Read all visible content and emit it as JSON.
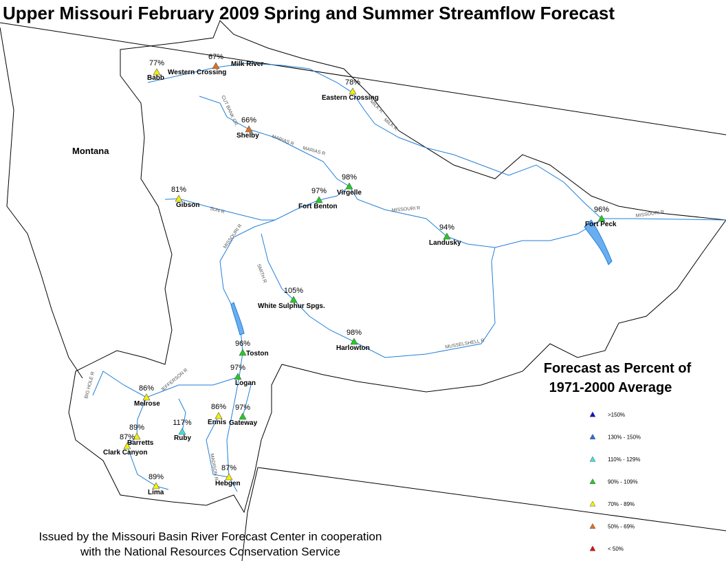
{
  "title": "Upper Missouri February 2009 Spring and Summer Streamflow Forecast",
  "state_label": "Montana",
  "footer": [
    "Issued by the Missouri Basin River Forecast Center in cooperation",
    "with the National Resources Conservation Service"
  ],
  "legend": {
    "title": [
      "Forecast as Percent of",
      "1971-2000 Average"
    ],
    "items": [
      {
        "label": ">150%",
        "color": "#1010d0"
      },
      {
        "label": "130% - 150%",
        "color": "#2a6fdc"
      },
      {
        "label": "110% - 129%",
        "color": "#40e0e0"
      },
      {
        "label": "90% - 109%",
        "color": "#22cc22"
      },
      {
        "label": "70% - 89%",
        "color": "#f5f000"
      },
      {
        "label": "50% - 69%",
        "color": "#e07020"
      },
      {
        "label": "< 50%",
        "color": "#e01010"
      }
    ]
  },
  "stations": [
    {
      "name": "Babb",
      "percent": "77%",
      "color": "#f5f000"
    },
    {
      "name": "Western Crossing",
      "percent": "67%",
      "color": "#e07020"
    },
    {
      "name": "Eastern Crossing",
      "percent": "78%",
      "color": "#f5f000"
    },
    {
      "name": "Shelby",
      "percent": "66%",
      "color": "#e07020"
    },
    {
      "name": "Virgelle",
      "percent": "98%",
      "color": "#22cc22"
    },
    {
      "name": "Fort Benton",
      "percent": "97%",
      "color": "#22cc22"
    },
    {
      "name": "Gibson",
      "percent": "81%",
      "color": "#f5f000"
    },
    {
      "name": "Fort Peck",
      "percent": "96%",
      "color": "#22cc22"
    },
    {
      "name": "Landusky",
      "percent": "94%",
      "color": "#22cc22"
    },
    {
      "name": "White Sulphur Spgs.",
      "percent": "105%",
      "color": "#22cc22"
    },
    {
      "name": "Harlowton",
      "percent": "98%",
      "color": "#22cc22"
    },
    {
      "name": "Toston",
      "percent": "96%",
      "color": "#22cc22"
    },
    {
      "name": "Logan",
      "percent": "97%",
      "color": "#22cc22"
    },
    {
      "name": "Melrose",
      "percent": "86%",
      "color": "#f5f000"
    },
    {
      "name": "Ennis",
      "percent": "86%",
      "color": "#f5f000"
    },
    {
      "name": "Gateway",
      "percent": "97%",
      "color": "#22cc22"
    },
    {
      "name": "Ruby",
      "percent": "117%",
      "color": "#40e0e0"
    },
    {
      "name": "Barretts",
      "percent": "89%",
      "color": "#f5f000"
    },
    {
      "name": "Clark Canyon",
      "percent": "87%",
      "color": "#f5f000"
    },
    {
      "name": "Lima",
      "percent": "89%",
      "color": "#f5f000"
    },
    {
      "name": "Hebgen",
      "percent": "87%",
      "color": "#f5f000"
    }
  ],
  "river_labels": [
    "Milk River",
    "MILK R.",
    "MILK R.",
    "CUT BANK CR.",
    "MARIAS R",
    "MARIAS R",
    "SUN R",
    "MISSOURI R",
    "SMITH R",
    "MISSOURI R",
    "MISSOURI R",
    "MUSSELSHELL R",
    "JEFFERSON R",
    "BIG HOLE R",
    "MADISON R"
  ]
}
